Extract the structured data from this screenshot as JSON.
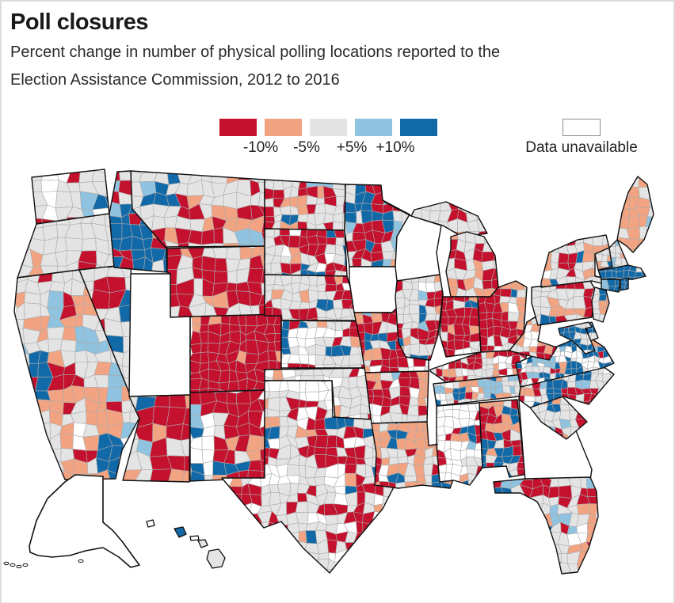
{
  "header": {
    "title": "Poll closures",
    "subtitle_line1": "Percent change in number of physical polling locations reported to the",
    "subtitle_line2": "Election Assistance Commission, 2012 to 2016"
  },
  "legend": {
    "labels": [
      "-10%",
      "-5%",
      "+5%",
      "+10%"
    ],
    "swatches": [
      {
        "name": "decrease-10-or-more",
        "color": "#C4122E"
      },
      {
        "name": "decrease-5-to-10",
        "color": "#F2A482"
      },
      {
        "name": "little-change",
        "color": "#E4E4E4"
      },
      {
        "name": "increase-5-to-10",
        "color": "#8FC3E0"
      },
      {
        "name": "increase-10-or-more",
        "color": "#1269A8"
      }
    ],
    "unavailable": {
      "label": "Data unavailable",
      "color": "#FFFFFF",
      "border": "#8C8C8C"
    }
  },
  "map": {
    "palette": {
      "red": "#C4122E",
      "salmon": "#F2A482",
      "gray": "#E4E4E4",
      "lblue": "#8FC3E0",
      "blue": "#1269A8",
      "white": "#FFFFFF"
    },
    "county_line": "#ABABAB",
    "state_line": "#111111",
    "states": [
      {
        "id": "WA",
        "name": "Washington",
        "cell": 16,
        "weights": {
          "gray": 58,
          "red": 16,
          "blue": 11,
          "lblue": 8,
          "salmon": 4,
          "white": 3
        }
      },
      {
        "id": "OR",
        "name": "Oregon",
        "cell": 16,
        "weights": {
          "gray": 90,
          "salmon": 4,
          "lblue": 3,
          "red": 3
        }
      },
      {
        "id": "CA",
        "name": "California",
        "cell": 15,
        "weights": {
          "gray": 52,
          "salmon": 17,
          "red": 13,
          "lblue": 9,
          "blue": 6,
          "white": 3
        }
      },
      {
        "id": "NV",
        "name": "Nevada",
        "cell": 18,
        "weights": {
          "gray": 60,
          "red": 22,
          "blue": 7,
          "salmon": 7,
          "white": 4
        }
      },
      {
        "id": "ID",
        "name": "Idaho",
        "cell": 14,
        "weights": {
          "blue": 30,
          "gray": 28,
          "red": 18,
          "lblue": 14,
          "salmon": 6,
          "white": 4
        }
      },
      {
        "id": "MT",
        "name": "Montana",
        "cell": 15,
        "weights": {
          "gray": 44,
          "red": 40,
          "salmon": 8,
          "blue": 4,
          "lblue": 4
        }
      },
      {
        "id": "WY",
        "name": "Wyoming",
        "cell": 15,
        "weights": {
          "red": 55,
          "gray": 30,
          "lblue": 8,
          "salmon": 7
        }
      },
      {
        "id": "UT",
        "name": "Utah",
        "solid": "white"
      },
      {
        "id": "CO",
        "name": "Colorado",
        "cell": 12,
        "weights": {
          "red": 90,
          "gray": 6,
          "salmon": 4
        }
      },
      {
        "id": "AZ",
        "name": "Arizona",
        "cell": 19,
        "weights": {
          "red": 52,
          "gray": 20,
          "lblue": 14,
          "salmon": 10,
          "blue": 4
        }
      },
      {
        "id": "NM",
        "name": "New Mexico",
        "cell": 15,
        "weights": {
          "red": 44,
          "white": 22,
          "gray": 12,
          "lblue": 10,
          "blue": 7,
          "salmon": 5
        }
      },
      {
        "id": "ND",
        "name": "North Dakota",
        "cell": 11,
        "weights": {
          "gray": 42,
          "red": 36,
          "salmon": 8,
          "blue": 8,
          "lblue": 6
        }
      },
      {
        "id": "SD",
        "name": "South Dakota",
        "cell": 11,
        "weights": {
          "red": 42,
          "gray": 36,
          "blue": 8,
          "white": 7,
          "salmon": 7
        }
      },
      {
        "id": "NE",
        "name": "Nebraska",
        "cell": 11,
        "weights": {
          "gray": 55,
          "red": 26,
          "salmon": 9,
          "white": 5,
          "blue": 5
        }
      },
      {
        "id": "KS",
        "name": "Kansas",
        "cell": 11,
        "weights": {
          "gray": 44,
          "red": 25,
          "white": 22,
          "salmon": 5,
          "blue": 4
        }
      },
      {
        "id": "OK",
        "name": "Oklahoma",
        "cell": 12,
        "weights": {
          "gray": 48,
          "white": 28,
          "red": 16,
          "salmon": 4,
          "blue": 4
        }
      },
      {
        "id": "TX",
        "name": "Texas",
        "cell": 12,
        "weights": {
          "gray": 32,
          "red": 28,
          "white": 24,
          "blue": 8,
          "salmon": 8
        }
      },
      {
        "id": "MN",
        "name": "Minnesota",
        "cell": 12,
        "weights": {
          "gray": 42,
          "lblue": 16,
          "blue": 14,
          "red": 13,
          "salmon": 11,
          "white": 4
        }
      },
      {
        "id": "IA",
        "name": "Iowa",
        "solid": "white"
      },
      {
        "id": "WI",
        "name": "Wisconsin",
        "solid": "white"
      },
      {
        "id": "MO",
        "name": "Missouri",
        "cell": 11,
        "weights": {
          "red": 42,
          "gray": 22,
          "salmon": 15,
          "white": 13,
          "blue": 4,
          "lblue": 4
        }
      },
      {
        "id": "AR",
        "name": "Arkansas",
        "cell": 11,
        "weights": {
          "red": 30,
          "salmon": 22,
          "gray": 20,
          "white": 20,
          "blue": 4,
          "lblue": 4
        }
      },
      {
        "id": "LA",
        "name": "Louisiana",
        "cell": 11,
        "weights": {
          "salmon": 36,
          "gray": 30,
          "red": 15,
          "white": 9,
          "lblue": 6,
          "blue": 4
        }
      },
      {
        "id": "IL",
        "name": "Illinois",
        "cell": 10,
        "weights": {
          "gray": 46,
          "red": 28,
          "salmon": 10,
          "blue": 9,
          "white": 4,
          "lblue": 3
        }
      },
      {
        "id": "M1",
        "name": "Michigan Upper Peninsula",
        "cell": 12,
        "weights": {
          "gray": 60,
          "red": 20,
          "salmon": 16,
          "lblue": 2,
          "blue": 2
        }
      },
      {
        "id": "M2",
        "name": "Michigan",
        "cell": 12,
        "weights": {
          "gray": 52,
          "red": 26,
          "salmon": 15,
          "white": 4,
          "blue": 2,
          "lblue": 1
        }
      },
      {
        "id": "IN",
        "name": "Indiana",
        "cell": 10,
        "weights": {
          "red": 50,
          "gray": 20,
          "white": 12,
          "salmon": 8,
          "blue": 6,
          "lblue": 4
        }
      },
      {
        "id": "OH",
        "name": "Ohio",
        "cell": 10,
        "weights": {
          "red": 48,
          "gray": 24,
          "salmon": 18,
          "white": 6,
          "lblue": 2,
          "blue": 2
        }
      },
      {
        "id": "KY",
        "name": "Kentucky",
        "cell": 8,
        "weights": {
          "red": 40,
          "gray": 27,
          "salmon": 16,
          "white": 10,
          "blue": 4,
          "lblue": 3
        }
      },
      {
        "id": "TN",
        "name": "Tennessee",
        "cell": 8,
        "weights": {
          "gray": 36,
          "salmon": 16,
          "red": 16,
          "blue": 12,
          "lblue": 12,
          "white": 8
        }
      },
      {
        "id": "MS",
        "name": "Mississippi",
        "cell": 10,
        "weights": {
          "white": 52,
          "red": 15,
          "salmon": 15,
          "gray": 8,
          "blue": 7,
          "lblue": 3
        }
      },
      {
        "id": "AL",
        "name": "Alabama",
        "cell": 10,
        "weights": {
          "gray": 26,
          "blue": 22,
          "red": 20,
          "salmon": 18,
          "white": 8,
          "lblue": 6
        }
      },
      {
        "id": "GA",
        "name": "Georgia",
        "solid": "white"
      },
      {
        "id": "FL",
        "name": "Florida",
        "cell": 12,
        "weights": {
          "gray": 50,
          "salmon": 13,
          "red": 13,
          "blue": 12,
          "lblue": 10,
          "white": 2
        }
      },
      {
        "id": "SC",
        "name": "South Carolina",
        "cell": 10,
        "weights": {
          "gray": 38,
          "lblue": 17,
          "blue": 14,
          "red": 13,
          "salmon": 12,
          "white": 6
        }
      },
      {
        "id": "NC",
        "name": "North Carolina",
        "cell": 9,
        "weights": {
          "gray": 46,
          "lblue": 14,
          "red": 13,
          "blue": 11,
          "salmon": 10,
          "white": 6
        }
      },
      {
        "id": "VA",
        "name": "Virginia",
        "cell": 7,
        "weights": {
          "blue": 36,
          "white": 27,
          "gray": 15,
          "lblue": 10,
          "red": 7,
          "salmon": 5
        }
      },
      {
        "id": "WV",
        "name": "West Virginia",
        "cell": 9,
        "weights": {
          "red": 34,
          "gray": 30,
          "white": 15,
          "salmon": 13,
          "blue": 8
        }
      },
      {
        "id": "PA",
        "name": "Pennsylvania",
        "cell": 11,
        "weights": {
          "gray": 54,
          "salmon": 19,
          "red": 18,
          "white": 4,
          "blue": 3,
          "lblue": 2
        }
      },
      {
        "id": "NY",
        "name": "New York",
        "cell": 11,
        "weights": {
          "gray": 46,
          "red": 15,
          "salmon": 15,
          "blue": 12,
          "lblue": 8,
          "white": 4
        }
      },
      {
        "id": "VT",
        "name": "Vermont",
        "cell": 8,
        "weights": {
          "gray": 38,
          "salmon": 30,
          "blue": 22,
          "lblue": 10
        }
      },
      {
        "id": "NH",
        "name": "New Hampshire",
        "cell": 8,
        "weights": {
          "gray": 50,
          "lblue": 20,
          "salmon": 18,
          "blue": 12
        }
      },
      {
        "id": "ME",
        "name": "Maine",
        "cell": 13,
        "weights": {
          "salmon": 44,
          "gray": 42,
          "red": 6,
          "lblue": 4,
          "blue": 4
        }
      },
      {
        "id": "MA",
        "name": "Massachusetts",
        "cell": 8,
        "weights": {
          "blue": 66,
          "gray": 16,
          "lblue": 12,
          "red": 6
        }
      },
      {
        "id": "CT",
        "name": "Connecticut",
        "cell": 8,
        "weights": {
          "gray": 55,
          "lblue": 22,
          "blue": 12,
          "salmon": 11
        }
      },
      {
        "id": "RI",
        "name": "Rhode Island",
        "cell": 6,
        "weights": {
          "gray": 75,
          "blue": 25
        }
      },
      {
        "id": "NJ",
        "name": "New Jersey",
        "cell": 9,
        "weights": {
          "gray": 50,
          "salmon": 22,
          "blue": 15,
          "red": 13
        }
      },
      {
        "id": "DE",
        "name": "Delaware",
        "cell": 7,
        "weights": {
          "blue": 60,
          "gray": 40
        }
      },
      {
        "id": "MD",
        "name": "Maryland",
        "cell": 7,
        "weights": {
          "blue": 62,
          "gray": 18,
          "red": 10,
          "white": 10
        }
      }
    ],
    "insets": {
      "alaska": {
        "name": "Alaska",
        "solid": "white"
      },
      "hawaii": {
        "name": "Hawaii",
        "islands": [
          {
            "name": "Kauai",
            "color": "white"
          },
          {
            "name": "Oahu",
            "color": "blue"
          },
          {
            "name": "Molokai",
            "color": "white"
          },
          {
            "name": "Maui",
            "color": "gray"
          },
          {
            "name": "Hawaii",
            "color": "gray"
          }
        ]
      }
    }
  }
}
